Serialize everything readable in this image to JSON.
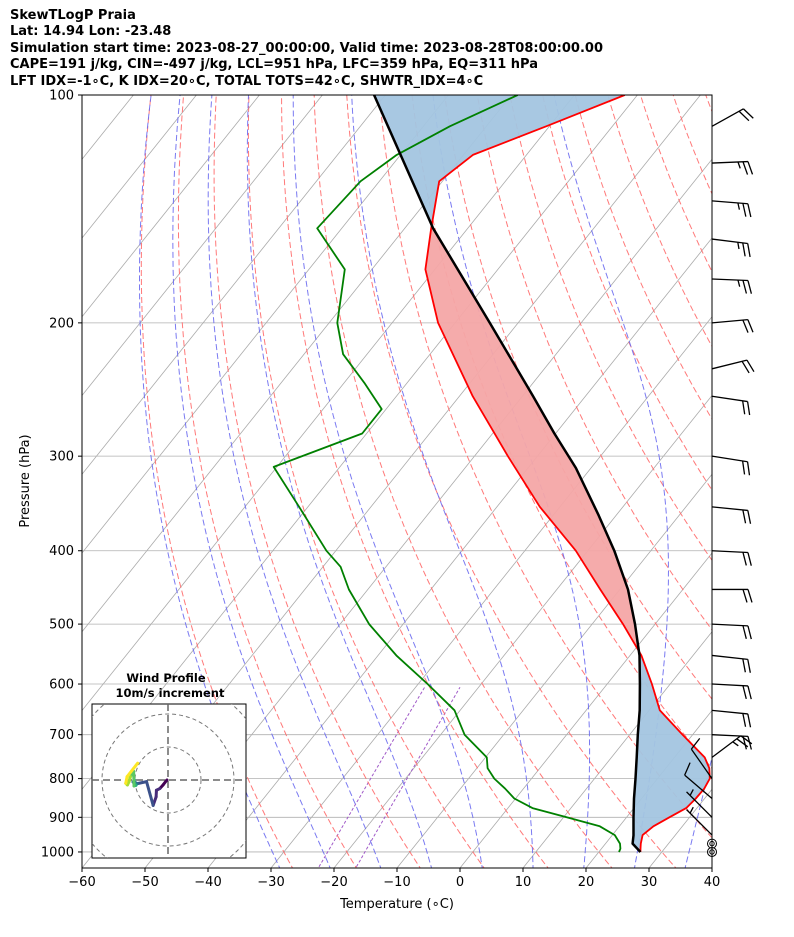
{
  "header": {
    "title": "SkewTLogP Praia",
    "location": "Lat: 14.94    Lon: -23.48",
    "times": "Simulation start time: 2023-08-27_00:00:00, Valid time: 2023-08-28T08:00:00.00",
    "params": "CAPE=191 j/kg, CIN=-497 j/kg, LCL=951 hPa, LFC=359 hPa, EQ=311 hPa",
    "indices": "LFT IDX=-1∘C, K IDX=20∘C, TOTAL TOTS=42∘C, SHWTR_IDX=4∘C"
  },
  "chart_data": [
    {
      "type": "line",
      "subtype": "skew-t log-p",
      "xlabel": "Temperature (∘C)",
      "ylabel": "Pressure (hPa)",
      "xlim": [
        -60,
        40
      ],
      "ylim": [
        1050,
        100
      ],
      "y_scale": "log",
      "x_ticks": [
        -60,
        -50,
        -40,
        -30,
        -20,
        -10,
        0,
        10,
        20,
        30,
        40
      ],
      "x_tick_labels": [
        "−60",
        "−50",
        "−40",
        "−30",
        "−20",
        "−10",
        "0",
        "10",
        "20",
        "30",
        "40"
      ],
      "y_ticks": [
        1000,
        900,
        800,
        700,
        600,
        500,
        400,
        300,
        200,
        100
      ],
      "y_tick_labels": [
        "1000",
        "900",
        "800",
        "700",
        "600",
        "500",
        "400",
        "300",
        "200",
        "100"
      ],
      "grid": true,
      "colors": {
        "temperature": "#ff0000",
        "dewpoint": "#008000",
        "parcel": "#000000",
        "cape_fill": "#f4a6a6",
        "cin_fill": "#a3c5e0",
        "dry_adiabats": "#ff6a6a",
        "moist_adiabats": "#6b6bf0",
        "mixing_ratio": "#a05ac8",
        "isotherms": "#aaaaaa"
      },
      "series": [
        {
          "key": "temperature",
          "pressure": [
            1000,
            990,
            975,
            950,
            925,
            900,
            875,
            850,
            825,
            800,
            775,
            750,
            700,
            650,
            600,
            550,
            500,
            450,
            400,
            350,
            300,
            250,
            200,
            170,
            150,
            130,
            120,
            110,
            100
          ],
          "values": [
            26.6,
            26.2,
            25.6,
            24.8,
            25.4,
            26.8,
            28.3,
            28.6,
            28.7,
            28.3,
            26.9,
            24.8,
            18.4,
            11.7,
            7.1,
            1.8,
            -5.1,
            -13.1,
            -21.9,
            -33.2,
            -44.7,
            -57.9,
            -72.7,
            -81.5,
            -85.8,
            -90.5,
            -88.5,
            -80.5,
            -72.0
          ]
        },
        {
          "key": "dewpoint",
          "pressure": [
            1000,
            990,
            975,
            950,
            925,
            900,
            875,
            850,
            825,
            800,
            775,
            750,
            700,
            650,
            600,
            550,
            500,
            450,
            420,
            400,
            350,
            310,
            280,
            260,
            240,
            220,
            200,
            170,
            150,
            130,
            120,
            110,
            100
          ],
          "values": [
            23.2,
            23.0,
            22.3,
            20.4,
            16.9,
            10.5,
            3.9,
            -0.2,
            -2.9,
            -5.9,
            -8.3,
            -9.8,
            -16.2,
            -20.9,
            -28.5,
            -37.1,
            -45.4,
            -53.0,
            -57.2,
            -61.5,
            -71.4,
            -80.5,
            -70.7,
            -70.7,
            -76.8,
            -83.8,
            -88.7,
            -94.3,
            -103.9,
            -103.0,
            -100.6,
            -95.8,
            -89.0
          ]
        },
        {
          "key": "parcel",
          "pressure": [
            1000,
            975,
            951,
            900,
            850,
            800,
            750,
            700,
            650,
            600,
            550,
            500,
            450,
            400,
            359,
            311,
            280,
            250,
            200,
            150,
            100
          ],
          "values": [
            26.6,
            24.3,
            23.4,
            21.1,
            18.8,
            16.5,
            14.0,
            11.3,
            8.5,
            5.2,
            1.5,
            -3.2,
            -8.7,
            -15.8,
            -22.8,
            -32.4,
            -40.2,
            -48.3,
            -64.5,
            -85.5,
            -111.8
          ]
        }
      ],
      "wind_barbs": {
        "pressure": [
          1000,
          975,
          950,
          900,
          850,
          800,
          750,
          700,
          650,
          600,
          550,
          500,
          450,
          400,
          350,
          300,
          250,
          230,
          200,
          175,
          155,
          138,
          123,
          110
        ],
        "u_kt": [
          -1,
          -1,
          -3,
          -5,
          -7,
          -7,
          20,
          22,
          20,
          19,
          18,
          20,
          19,
          20,
          20,
          19,
          20,
          20,
          22,
          23,
          24,
          25,
          24,
          18
        ],
        "v_kt": [
          0,
          0,
          3,
          5,
          6,
          10,
          15,
          -1,
          -2,
          -1,
          -2,
          -1,
          0,
          -1,
          -2,
          -3,
          -3,
          5,
          2,
          -1,
          -3,
          -2,
          1,
          10
        ]
      },
      "wind_profile_inset": {
        "title": "Wind Profile",
        "subtitle": "10m/s increment",
        "u_ms": [
          -0.3,
          -0.5,
          -1.5,
          -2.5,
          -3.5,
          -3.6,
          -4.5,
          -6.5,
          -9.3,
          -10.3,
          -10.6,
          -10.3,
          -10.2,
          -10.3,
          -10.0,
          -9.7,
          -10.3,
          -10.4,
          -11.4,
          -11.8,
          -12.3,
          -12.8,
          -12.4,
          -9.2
        ],
        "v_ms": [
          0.0,
          -0.2,
          -1.5,
          -2.6,
          -3.1,
          -5.1,
          -7.7,
          -0.5,
          -1.1,
          -0.5,
          -0.6,
          -0.5,
          0.0,
          -0.6,
          -1.3,
          -1.6,
          -1.8,
          2.6,
          1.0,
          -0.5,
          -1.5,
          -1.0,
          1.0,
          5.1
        ],
        "colormap": "viridis"
      }
    }
  ]
}
